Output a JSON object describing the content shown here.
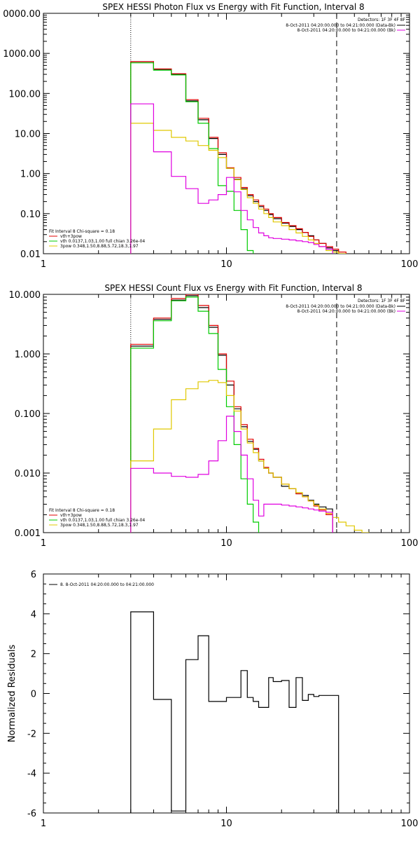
{
  "chart_data": [
    {
      "type": "line",
      "title": "SPEX HESSI Photon Flux vs Energy with Fit Function, Interval 8",
      "xlabel": "",
      "ylabel": "",
      "xscale": "log",
      "yscale": "log",
      "xlim": [
        1,
        100
      ],
      "ylim": [
        0.01,
        10000
      ],
      "x_ticks": [
        "1",
        "10",
        "100"
      ],
      "y_ticks": [
        "0.01",
        "0.10",
        "1.00",
        "10.00",
        "100.00",
        "1000.00",
        "0000.00"
      ],
      "legend_top": {
        "header": "Detectors: 1F 3F 4F 8F",
        "entries": [
          "8-Oct-2011 04:20:00.000 to 04:21:00.000 (Data-Bk)",
          "8-Oct-2011 04:20:00.000 to 04:21:00.000 (Bk)"
        ]
      },
      "legend_bottom": {
        "header": "Fit Interval 8   Chi-square = 0.18",
        "entries": [
          "vth+3pow",
          "vth 0.0137,1.03,1.00  full chian 3.26e-04",
          "3pow 0.348,1.50,8.88,5.72,18.3,1.97"
        ]
      },
      "vlines": [
        3,
        40
      ],
      "bin_edges": [
        3,
        4,
        5,
        6,
        7,
        8,
        9,
        10,
        11,
        12,
        13,
        14,
        15,
        16,
        17,
        18,
        20,
        22,
        24,
        26,
        28,
        30,
        32,
        35,
        38,
        41,
        45,
        50
      ],
      "series": [
        {
          "name": "8-Oct-2011 04:20:00.000 to 04:21:00.000 (Data-Bk)",
          "color": "#000000",
          "values": [
            620,
            400,
            300,
            65,
            22,
            7.5,
            3.0,
            1.35,
            0.72,
            0.42,
            0.28,
            0.2,
            0.15,
            0.12,
            0.095,
            0.075,
            0.058,
            0.048,
            0.04,
            0.034,
            0.028,
            0.022,
            0.018,
            0.014,
            0.012,
            null,
            null
          ]
        },
        {
          "name": "vth+3pow",
          "color": "#e00000",
          "values": [
            620,
            410,
            310,
            70,
            24,
            8.0,
            3.3,
            1.4,
            0.8,
            0.45,
            0.3,
            0.22,
            0.16,
            0.13,
            0.1,
            0.08,
            0.06,
            0.05,
            0.042,
            0.034,
            0.027,
            0.022,
            0.018,
            0.015,
            0.013,
            0.011,
            null
          ]
        },
        {
          "name": "vth 0.0137,1.03,1.00  full chian 3.26e-04",
          "color": "#00cc00",
          "values": [
            580,
            380,
            290,
            62,
            18,
            4.2,
            0.5,
            0.36,
            0.12,
            0.04,
            0.012,
            0.005,
            null,
            null,
            null,
            null,
            null,
            null,
            null,
            null,
            null,
            null,
            null,
            null,
            null,
            null,
            null
          ]
        },
        {
          "name": "3pow 0.348,1.50,8.88,5.72,18.3,1.97",
          "color": "#e0c800",
          "values": [
            18,
            12,
            8,
            6.5,
            5.0,
            3.8,
            2.5,
            1.35,
            0.7,
            0.4,
            0.25,
            0.18,
            0.13,
            0.1,
            0.08,
            0.062,
            0.05,
            0.04,
            0.033,
            0.027,
            0.022,
            0.018,
            0.015,
            0.012,
            0.011,
            0.01,
            null
          ]
        },
        {
          "name": "8-Oct-2011 04:20:00.000 to 04:21:00.000 (Bk)",
          "color": "#e000e0",
          "values": [
            55,
            3.5,
            0.85,
            0.42,
            0.18,
            0.22,
            0.3,
            0.8,
            0.35,
            0.12,
            0.07,
            0.045,
            0.033,
            0.028,
            0.025,
            0.024,
            0.023,
            0.022,
            0.021,
            0.02,
            0.019,
            0.017,
            0.015,
            0.013,
            null,
            null,
            null
          ]
        }
      ]
    },
    {
      "type": "line",
      "title": "SPEX HESSI Count Flux vs Energy with Fit Function, Interval 8",
      "xlabel": "",
      "ylabel": "",
      "xscale": "log",
      "yscale": "log",
      "xlim": [
        1,
        100
      ],
      "ylim": [
        0.001,
        10
      ],
      "x_ticks": [
        "1",
        "10",
        "100"
      ],
      "y_ticks": [
        "0.001",
        "0.010",
        "0.100",
        "1.000",
        "10.000"
      ],
      "legend_top": {
        "header": "Detectors: 1F 3F 4F 8F",
        "entries": [
          "8-Oct-2011 04:20:00.000 to 04:21:00.000 (Data-Bk)",
          "8-Oct-2011 04:20:00.000 to 04:21:00.000 (Bk)"
        ]
      },
      "legend_bottom": {
        "header": "Fit Interval 8   Chi-square = 0.18",
        "entries": [
          "vth+3pow",
          "vth 0.0137,1.03,1.00  full chian 3.26e-04",
          "3pow 0.348,1.50,8.88,5.72,18.3,1.97"
        ]
      },
      "vlines": [
        3,
        40
      ],
      "bin_edges": [
        3,
        4,
        5,
        6,
        7,
        8,
        9,
        10,
        11,
        12,
        13,
        14,
        15,
        16,
        17,
        18,
        20,
        22,
        24,
        26,
        28,
        30,
        32,
        35,
        38,
        41,
        45,
        50,
        55,
        60,
        70,
        80
      ],
      "series": [
        {
          "name": "8-Oct-2011 04:20:00.000 to 04:21:00.000 (Data-Bk)",
          "color": "#000000",
          "values": [
            1.35,
            3.8,
            8.0,
            9.5,
            6.0,
            2.8,
            0.95,
            0.3,
            0.12,
            0.06,
            0.034,
            0.025,
            0.016,
            0.012,
            0.01,
            0.0085,
            0.006,
            0.0055,
            0.0045,
            0.0042,
            0.0035,
            0.003,
            0.0027,
            0.0025,
            null,
            null,
            null,
            null,
            null,
            null,
            null
          ]
        },
        {
          "name": "vth+3pow",
          "color": "#e00000",
          "values": [
            1.45,
            4.0,
            8.5,
            10.0,
            6.5,
            3.0,
            1.0,
            0.35,
            0.13,
            0.065,
            0.037,
            0.026,
            0.017,
            0.0125,
            0.01,
            0.0085,
            0.0065,
            0.0055,
            0.0045,
            0.004,
            0.0034,
            0.0028,
            0.0024,
            0.002,
            null,
            null,
            null,
            null,
            null,
            null,
            null
          ]
        },
        {
          "name": "vth 0.0137,1.03,1.00  full chian 3.26e-04",
          "color": "#00cc00",
          "values": [
            1.25,
            3.6,
            7.8,
            9.0,
            5.2,
            2.2,
            0.55,
            0.13,
            0.03,
            0.008,
            0.003,
            0.0015,
            null,
            null,
            null,
            null,
            null,
            null,
            null,
            null,
            null,
            null,
            null,
            null,
            null,
            null,
            null,
            null,
            null,
            null,
            null
          ]
        },
        {
          "name": "3pow 0.348,1.50,8.88,5.72,18.3,1.97",
          "color": "#e0c800",
          "values": [
            0.016,
            0.055,
            0.17,
            0.26,
            0.34,
            0.36,
            0.33,
            0.2,
            0.11,
            0.055,
            0.032,
            0.022,
            0.016,
            0.012,
            0.01,
            0.0085,
            0.0065,
            0.0055,
            0.0047,
            0.004,
            0.0034,
            0.0029,
            0.0025,
            0.0021,
            0.0018,
            0.0015,
            0.0013,
            0.0011,
            0.001,
            null,
            null
          ]
        },
        {
          "name": "8-Oct-2011 04:20:00.000 to 04:21:00.000 (Bk)",
          "color": "#e000e0",
          "values": [
            0.012,
            0.01,
            0.0088,
            0.0085,
            0.0095,
            0.016,
            0.035,
            0.09,
            0.05,
            0.02,
            0.008,
            0.0035,
            0.0019,
            0.003,
            0.003,
            0.003,
            0.0029,
            0.0028,
            0.0027,
            0.0026,
            0.0025,
            0.0024,
            0.0023,
            0.0022,
            null,
            null,
            null,
            null,
            null,
            null,
            null
          ]
        }
      ]
    },
    {
      "type": "line",
      "title": "",
      "xlabel": "",
      "ylabel": "Normalized Residuals",
      "xscale": "log",
      "yscale": "linear",
      "xlim": [
        1,
        100
      ],
      "ylim": [
        -6,
        6
      ],
      "x_ticks": [
        "1",
        "10",
        "100"
      ],
      "y_ticks": [
        "-6",
        "-4",
        "-2",
        "0",
        "2",
        "4",
        "6"
      ],
      "legend": {
        "entries": [
          "8.  8-Oct-2011 04:20:00.000 to 04:21:00.000"
        ]
      },
      "bin_edges": [
        3,
        4,
        5,
        6,
        7,
        8,
        9,
        10,
        11,
        12,
        13,
        14,
        15,
        16,
        17,
        18,
        20,
        22,
        24,
        26,
        28,
        30,
        32,
        35,
        38,
        41
      ],
      "series": [
        {
          "name": "8.  8-Oct-2011 04:20:00.000 to 04:21:00.000",
          "color": "#000000",
          "values": [
            4.1,
            -0.3,
            -5.9,
            1.7,
            2.9,
            -0.4,
            -0.4,
            -0.2,
            -0.2,
            1.15,
            -0.2,
            -0.4,
            -0.7,
            -0.7,
            0.8,
            0.6,
            0.65,
            -0.7,
            0.8,
            -0.35,
            -0.05,
            -0.15,
            -0.1,
            -0.1,
            -0.1
          ]
        }
      ]
    }
  ]
}
